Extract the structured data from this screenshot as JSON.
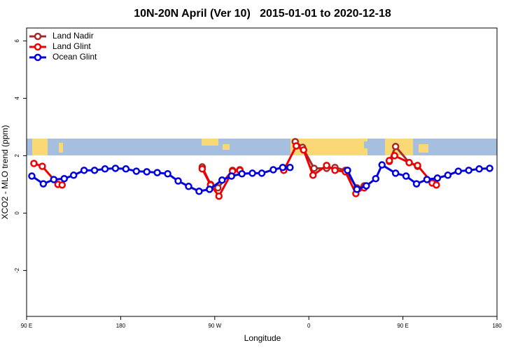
{
  "chart_data": {
    "type": "line",
    "title": "10N-20N April (Ver 10)   2015-01-01 to 2020-12-18",
    "x_label": "Longitude",
    "y_label": "XCO2 - MLO trend (ppm)",
    "xlim": [
      90,
      540
    ],
    "ylim": [
      -3.6,
      6.45
    ],
    "xticks": [
      {
        "value": 90,
        "label": "90 E"
      },
      180,
      {
        "value": 270,
        "label": "90 W"
      },
      {
        "value": 360,
        "label": "0"
      },
      {
        "value": 450,
        "label": "90 E"
      },
      {
        "value": 540,
        "label": "180"
      }
    ],
    "yticks": [
      6,
      4,
      2,
      0,
      -2
    ],
    "legend": "top-left",
    "series": [
      {
        "name": "Land Nadir",
        "color": "#a52a2a",
        "x": [
          258,
          266,
          273,
          287,
          294,
          null,
          347,
          354,
          365,
          377,
          385,
          395,
          406,
          413,
          null,
          437,
          443,
          456,
          464
        ],
        "values": [
          1.61,
          1.0,
          0.88,
          1.49,
          1.51,
          null,
          2.49,
          2.29,
          1.56,
          1.56,
          1.59,
          1.49,
          0.88,
          0.95,
          null,
          1.8,
          2.32,
          1.76,
          1.63
        ]
      },
      {
        "name": "Land Glint",
        "color": "#ee0000",
        "x": [
          97,
          105,
          120,
          124,
          null,
          258,
          266,
          274,
          287,
          294,
          null,
          336,
          348,
          355,
          364,
          377,
          385,
          395,
          405,
          413,
          null,
          437,
          442,
          456,
          464,
          478,
          482
        ],
        "values": [
          1.73,
          1.63,
          1.0,
          0.98,
          null,
          1.54,
          0.98,
          0.59,
          1.46,
          1.49,
          null,
          1.49,
          2.34,
          2.2,
          1.32,
          1.66,
          1.49,
          1.44,
          0.68,
          0.88,
          null,
          1.83,
          2.0,
          1.76,
          1.66,
          1.05,
          0.98
        ]
      },
      {
        "name": "Ocean Glint",
        "color": "#0000dd",
        "x": [
          95,
          106,
          116,
          126,
          135,
          145,
          155,
          165,
          175,
          185,
          195,
          205,
          215,
          225,
          235,
          245,
          255,
          265,
          277,
          286,
          296,
          306,
          315,
          326,
          335,
          342,
          null,
          397,
          406,
          415,
          424,
          430,
          443,
          453,
          463,
          473,
          483,
          493,
          503,
          513,
          523,
          533
        ],
        "values": [
          1.29,
          1.02,
          1.17,
          1.2,
          1.32,
          1.49,
          1.49,
          1.54,
          1.56,
          1.54,
          1.46,
          1.44,
          1.41,
          1.37,
          1.12,
          0.93,
          0.76,
          0.83,
          1.15,
          1.29,
          1.37,
          1.39,
          1.39,
          1.51,
          1.59,
          1.59,
          null,
          1.49,
          0.83,
          0.95,
          1.2,
          1.68,
          1.39,
          1.29,
          1.02,
          1.17,
          1.22,
          1.32,
          1.46,
          1.49,
          1.54,
          1.56
        ]
      }
    ]
  }
}
